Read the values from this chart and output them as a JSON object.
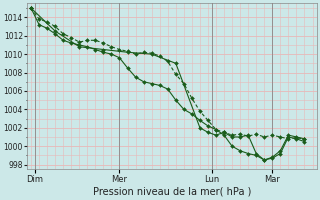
{
  "title": "Pression niveau de la mer( hPa )",
  "background_color": "#cce8e8",
  "grid_color": "#e8b8b8",
  "line_color": "#1a5c1a",
  "ylim": [
    997.5,
    1015.5
  ],
  "yticks": [
    998,
    1000,
    1002,
    1004,
    1006,
    1008,
    1010,
    1012,
    1014
  ],
  "ytick_fontsize": 5.5,
  "xlabel_fontsize": 7,
  "day_labels": [
    "Dim",
    "Mer",
    "Lun",
    "Mar"
  ],
  "day_positions": [
    0.5,
    11,
    22.5,
    30
  ],
  "vline_positions": [
    0.5,
    11,
    22.5,
    30
  ],
  "xlim": [
    -0.5,
    35.5
  ],
  "line1_x": [
    0,
    1,
    2,
    3,
    4,
    5,
    6,
    7,
    8,
    9,
    10,
    11,
    12,
    13,
    14,
    15,
    16,
    17,
    18,
    19,
    20,
    21,
    22,
    23,
    24,
    25,
    26,
    27,
    28,
    29,
    30,
    31,
    32,
    33,
    34
  ],
  "line1_y": [
    1015.0,
    1013.2,
    1012.8,
    1012.2,
    1011.5,
    1011.2,
    1011.0,
    1010.8,
    1010.5,
    1010.2,
    1010.0,
    1009.6,
    1008.5,
    1007.5,
    1007.0,
    1006.8,
    1006.6,
    1006.2,
    1005.0,
    1004.0,
    1003.5,
    1002.8,
    1002.2,
    1001.8,
    1001.2,
    1000.0,
    999.5,
    999.2,
    999.0,
    998.5,
    998.7,
    999.2,
    1001.0,
    1000.8,
    1000.5
  ],
  "line2_x": [
    0,
    1,
    2,
    3,
    4,
    5,
    6,
    7,
    8,
    9,
    10,
    11,
    12,
    13,
    14,
    15,
    16,
    17,
    18,
    19,
    20,
    21,
    22,
    23,
    24,
    25,
    26,
    27,
    28,
    29,
    30,
    31,
    32,
    33,
    34
  ],
  "line2_y": [
    1015.0,
    1013.8,
    1013.5,
    1013.0,
    1012.2,
    1011.8,
    1011.3,
    1011.5,
    1011.5,
    1011.2,
    1010.8,
    1010.5,
    1010.3,
    1010.0,
    1010.2,
    1010.1,
    1009.8,
    1009.2,
    1007.8,
    1006.8,
    1005.2,
    1003.8,
    1002.8,
    1001.8,
    1001.5,
    1001.2,
    1001.3,
    1001.1,
    1001.3,
    1001.0,
    1001.2,
    1001.0,
    1000.8,
    1000.9,
    1000.8
  ],
  "line3_x": [
    0,
    3,
    6,
    9,
    12,
    15,
    18,
    21,
    22,
    23,
    24,
    25,
    26,
    27,
    28,
    29,
    30,
    31,
    32,
    33,
    34
  ],
  "line3_y": [
    1015.0,
    1012.5,
    1010.8,
    1010.5,
    1010.2,
    1010.0,
    1009.0,
    1002.0,
    1001.5,
    1001.2,
    1001.5,
    1001.0,
    1001.0,
    1001.2,
    999.2,
    998.5,
    998.8,
    999.5,
    1001.2,
    1001.0,
    1000.8
  ]
}
